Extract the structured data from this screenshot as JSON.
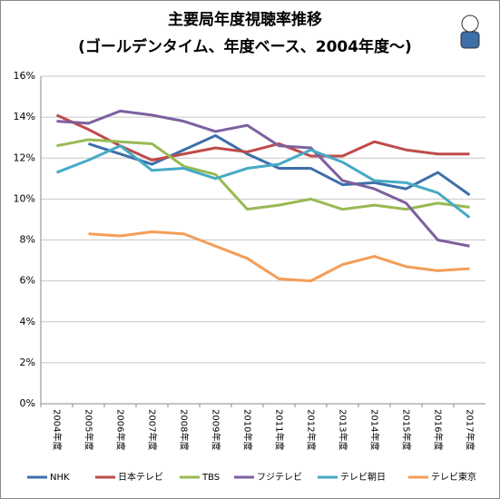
{
  "chart_data": {
    "type": "line",
    "title": "主要局年度視聴率推移",
    "subtitle": "(ゴールデンタイム、年度ベース、2004年度〜)",
    "categories": [
      "2004年度",
      "2005年度",
      "2006年度",
      "2007年度",
      "2008年度",
      "2009年度",
      "2010年度",
      "2011年度",
      "2012年度",
      "2013年度",
      "2014年度",
      "2015年度",
      "2016年度",
      "2017年度"
    ],
    "series": [
      {
        "name": "NHK",
        "color": "#3d6fa9",
        "values": [
          null,
          12.7,
          12.2,
          11.7,
          12.4,
          13.1,
          12.2,
          11.5,
          11.5,
          10.7,
          10.8,
          10.5,
          11.3,
          10.2
        ]
      },
      {
        "name": "日本テレビ",
        "color": "#be4b48",
        "values": [
          14.1,
          13.4,
          12.6,
          11.9,
          12.2,
          12.5,
          12.3,
          12.7,
          12.1,
          12.1,
          12.8,
          12.4,
          12.2,
          12.2
        ]
      },
      {
        "name": "TBS",
        "color": "#98b954",
        "values": [
          12.6,
          12.9,
          12.8,
          12.7,
          11.6,
          11.2,
          9.5,
          9.7,
          10.0,
          9.5,
          9.7,
          9.5,
          9.8,
          9.6
        ]
      },
      {
        "name": "フジテレビ",
        "color": "#7d60a0",
        "values": [
          13.8,
          13.7,
          14.3,
          14.1,
          13.8,
          13.3,
          13.6,
          12.6,
          12.5,
          10.9,
          10.5,
          9.8,
          8.0,
          7.7
        ]
      },
      {
        "name": "テレビ朝日",
        "color": "#46aac5",
        "values": [
          11.3,
          11.9,
          12.6,
          11.4,
          11.5,
          11.0,
          11.5,
          11.7,
          12.4,
          11.8,
          10.9,
          10.8,
          10.3,
          9.1
        ]
      },
      {
        "name": "テレビ東京",
        "color": "#f59d56",
        "values": [
          null,
          8.3,
          8.2,
          8.4,
          8.3,
          7.7,
          7.1,
          6.1,
          6.0,
          6.8,
          7.2,
          6.7,
          6.5,
          6.6
        ]
      }
    ],
    "ylim": [
      0,
      16
    ],
    "yticks": [
      {
        "value": 0,
        "label": "0%"
      },
      {
        "value": 2,
        "label": "2%"
      },
      {
        "value": 4,
        "label": "4%"
      },
      {
        "value": 6,
        "label": "6%"
      },
      {
        "value": 8,
        "label": "8%"
      },
      {
        "value": 10,
        "label": "10%"
      },
      {
        "value": 12,
        "label": "12%"
      },
      {
        "value": 14,
        "label": "14%"
      },
      {
        "value": 16,
        "label": "16%"
      }
    ],
    "grid": true
  }
}
